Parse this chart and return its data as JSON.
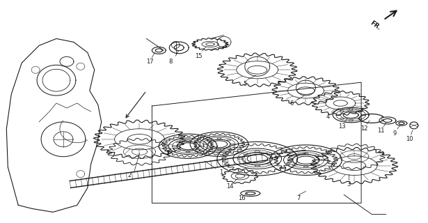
{
  "bg_color": "#ffffff",
  "line_color": "#1a1a1a",
  "fig_width": 6.15,
  "fig_height": 3.2,
  "dpi": 100
}
